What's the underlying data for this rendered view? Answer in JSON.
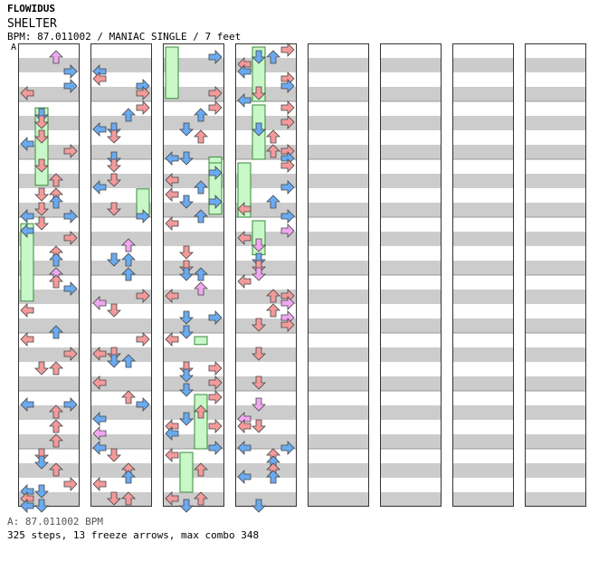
{
  "header": {
    "artist": "FLOWIDUS",
    "title": "SHELTER",
    "info": "BPM: 87.011002 / MANIAC SINGLE / 7 feet",
    "bpm_marker": "A"
  },
  "footer": {
    "bpm_line": "A: 87.011002 BPM",
    "stats_line": "325 steps, 13 freeze arrows, max combo 348"
  },
  "colors": {
    "quarter": "#f39a9a",
    "eighth": "#6aaaf0",
    "sixteenth": "#f0a8f0",
    "freeze": "#c8f7c8",
    "stripe": "#cccccc",
    "border": "#333333"
  },
  "chart_data": {
    "type": "step-chart",
    "measures": 32,
    "steps": 325,
    "freeze_arrows": 13,
    "max_combo": 348,
    "bpm": 87.011002,
    "difficulty": "MANIAC SINGLE",
    "feet": 7,
    "freezes": [
      {
        "measure": 2,
        "lane": 1,
        "start": 0.05,
        "end": 1.45
      },
      {
        "measure": 4,
        "lane": 0,
        "start": 0.05,
        "end": 1.45
      },
      {
        "measure": 11,
        "lane": 3,
        "start": 0.45,
        "end": 0.95
      },
      {
        "measure": 17,
        "lane": 0,
        "start": 0.0,
        "end": 0.95
      },
      {
        "measure": 18,
        "lane": 3,
        "start": 0.9,
        "end": 1.4
      },
      {
        "measure": 19,
        "lane": 3,
        "start": 0.0,
        "end": 0.95
      },
      {
        "measure": 22,
        "lane": 2,
        "start": 0.0,
        "end": 0.2
      },
      {
        "measure": 23,
        "lane": 2,
        "start": 0.0,
        "end": 1.0
      },
      {
        "measure": 24,
        "lane": 1,
        "start": 0.0,
        "end": 0.75
      },
      {
        "measure": 25,
        "lane": 1,
        "start": 0.0,
        "end": 1.0
      },
      {
        "measure": 26,
        "lane": 1,
        "start": 0.0,
        "end": 1.0
      },
      {
        "measure": 27,
        "lane": 0,
        "start": 0.0,
        "end": 1.0
      },
      {
        "measure": 28,
        "lane": 1,
        "start": 0.0,
        "end": 0.65
      }
    ]
  }
}
